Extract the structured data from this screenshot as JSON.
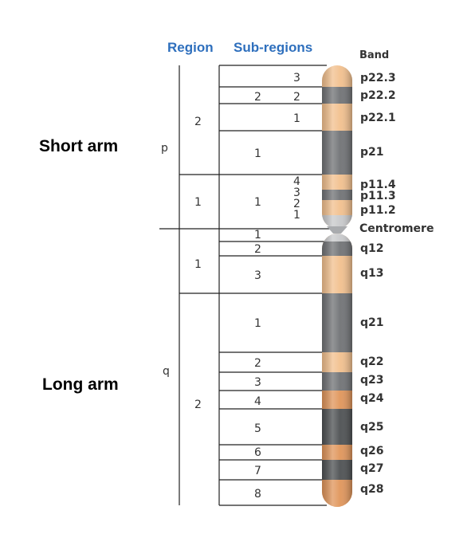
{
  "headers": {
    "region": "Region",
    "subregions": "Sub-regions",
    "band": "Band"
  },
  "arms": {
    "short": "Short arm",
    "long": "Long arm",
    "p": "p",
    "q": "q"
  },
  "regions": [
    {
      "label": "2"
    },
    {
      "label": "1"
    },
    {
      "label": "1"
    },
    {
      "label": "2"
    }
  ],
  "subregions": [
    {
      "region": "2",
      "sub": "3"
    },
    {
      "region": "2",
      "sub": "2"
    },
    {
      "region": "",
      "sub": "1"
    },
    {
      "region": "",
      "sub": "1"
    },
    {
      "region": "1",
      "sub": "4"
    },
    {
      "region": "",
      "sub": "3"
    },
    {
      "region": "",
      "sub": "2"
    },
    {
      "region": "",
      "sub": "1"
    },
    {
      "region": "",
      "sub": "1"
    },
    {
      "region": "",
      "sub": "2"
    },
    {
      "region": "",
      "sub": "3"
    },
    {
      "region": "",
      "sub": "1"
    },
    {
      "region": "",
      "sub": "2"
    },
    {
      "region": "",
      "sub": "3"
    },
    {
      "region": "",
      "sub": "4"
    },
    {
      "region": "",
      "sub": "5"
    },
    {
      "region": "",
      "sub": "6"
    },
    {
      "region": "",
      "sub": "7"
    },
    {
      "region": "",
      "sub": "8"
    }
  ],
  "sub_region_col": [
    "2",
    "1",
    "1"
  ],
  "bands": [
    "p22.3",
    "p22.2",
    "p22.1",
    "p21",
    "p11.4",
    "p11.3",
    "p11.2",
    "Centromere",
    "q12",
    "q13",
    "q21",
    "q22",
    "q23",
    "q24",
    "q25",
    "q26",
    "q27",
    "q28"
  ],
  "colors": {
    "header": "#2e6fbd",
    "light": "#f2c08e",
    "gray": "#707275",
    "dark": "#4d5052",
    "mid_orange": "#e0955a",
    "line": "#222222"
  }
}
